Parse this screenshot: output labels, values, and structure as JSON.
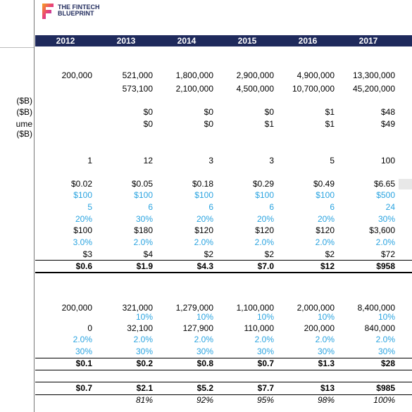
{
  "header": {
    "logo_lines": [
      "THE FINTECH",
      "BLUEPRINT"
    ]
  },
  "table": {
    "columns": [
      "2012",
      "2013",
      "2014",
      "2015",
      "2016",
      "2017"
    ],
    "row_labels": [
      "($B)",
      "($B)",
      "ume ($B)"
    ],
    "rows": [
      [
        "200,000",
        "521,000",
        "1,800,000",
        "2,900,000",
        "4,900,000",
        "13,300,000"
      ],
      [
        null,
        "573,100",
        "2,100,000",
        "4,500,000",
        "10,700,000",
        "45,200,000"
      ],
      [
        null,
        "$0",
        "$0",
        "$0",
        "$1",
        "$48"
      ],
      [
        null,
        "$0",
        "$0",
        "$1",
        "$1",
        "$49"
      ],
      [
        "1",
        "12",
        "3",
        "3",
        "5",
        "100"
      ],
      [
        "$0.02",
        "$0.05",
        "$0.18",
        "$0.29",
        "$0.49",
        "$6.65"
      ],
      [
        "$100",
        "$100",
        "$100",
        "$100",
        "$100",
        "$500"
      ],
      [
        "5",
        "6",
        "6",
        "6",
        "6",
        "24"
      ],
      [
        "20%",
        "30%",
        "20%",
        "20%",
        "20%",
        "30%"
      ],
      [
        "$100",
        "$180",
        "$120",
        "$120",
        "$120",
        "$3,600"
      ],
      [
        "3.0%",
        "2.0%",
        "2.0%",
        "2.0%",
        "2.0%",
        "2.0%"
      ],
      [
        "$3",
        "$4",
        "$2",
        "$2",
        "$2",
        "$72"
      ],
      [
        "$0.6",
        "$1.9",
        "$4.3",
        "$7.0",
        "$12",
        "$958"
      ],
      [
        "200,000",
        "321,000",
        "1,279,000",
        "1,100,000",
        "2,000,000",
        "8,400,000"
      ],
      [
        null,
        "10%",
        "10%",
        "10%",
        "10%",
        "10%"
      ],
      [
        "0",
        "32,100",
        "127,900",
        "110,000",
        "200,000",
        "840,000"
      ],
      [
        "2.0%",
        "2.0%",
        "2.0%",
        "2.0%",
        "2.0%",
        "2.0%"
      ],
      [
        "30%",
        "30%",
        "30%",
        "30%",
        "30%",
        "30%"
      ],
      [
        "$0.1",
        "$0.2",
        "$0.8",
        "$0.7",
        "$1.3",
        "$28"
      ],
      [
        "$0.7",
        "$2.1",
        "$5.2",
        "$7.7",
        "$13",
        "$985"
      ],
      [
        null,
        "81%",
        "92%",
        "95%",
        "98%",
        "100%"
      ]
    ]
  }
}
